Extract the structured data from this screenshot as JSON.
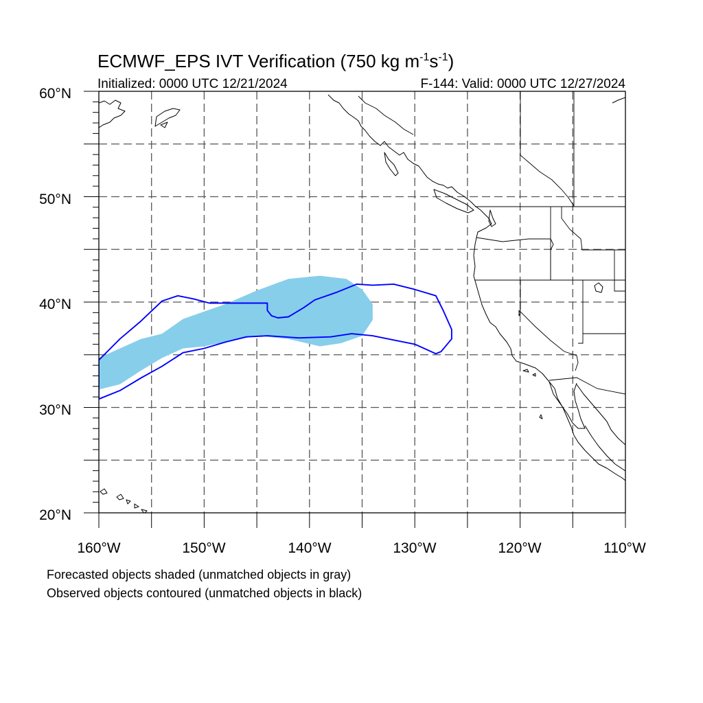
{
  "title": {
    "main": "ECMWF_EPS IVT Verification (750 kg m",
    "sup1": "-1",
    "mid": "s",
    "sup2": "-1",
    "end": ")"
  },
  "initialized": "Initialized: 0000 UTC 12/21/2024",
  "valid": "F-144: Valid: 0000 UTC 12/27/2024",
  "map": {
    "lon_range": [
      -160,
      -110
    ],
    "lat_range": [
      20,
      60
    ],
    "gridline_spacing_degrees": 5,
    "lat_labels": [
      "20°N",
      "30°N",
      "40°N",
      "50°N",
      "60°N"
    ],
    "lon_labels": [
      "160°W",
      "150°W",
      "140°W",
      "130°W",
      "120°W",
      "110°W"
    ],
    "forecast_color": "#87ceeb",
    "observed_color": "#0000ff",
    "forecast_object": [
      [
        -160,
        31.7
      ],
      [
        -158,
        32.2
      ],
      [
        -156,
        33.5
      ],
      [
        -154,
        34.7
      ],
      [
        -152,
        35.6
      ],
      [
        -150,
        35.8
      ],
      [
        -148,
        36.2
      ],
      [
        -145,
        36.8
      ],
      [
        -142,
        36.5
      ],
      [
        -139,
        35.8
      ],
      [
        -137,
        36.1
      ],
      [
        -135,
        36.8
      ],
      [
        -134,
        38.3
      ],
      [
        -134,
        39.8
      ],
      [
        -135,
        41.2
      ],
      [
        -136.5,
        42.2
      ],
      [
        -139,
        42.5
      ],
      [
        -142,
        42.2
      ],
      [
        -145,
        41.1
      ],
      [
        -148,
        39.8
      ],
      [
        -150,
        39.1
      ],
      [
        -152,
        38.4
      ],
      [
        -154,
        37.0
      ],
      [
        -156,
        36.5
      ],
      [
        -158,
        35.6
      ],
      [
        -160,
        34.7
      ]
    ],
    "observed_object": [
      [
        -160,
        30.8
      ],
      [
        -158,
        31.6
      ],
      [
        -156,
        32.8
      ],
      [
        -154,
        33.9
      ],
      [
        -152,
        35.2
      ],
      [
        -150,
        35.6
      ],
      [
        -148,
        36.2
      ],
      [
        -146,
        36.7
      ],
      [
        -144,
        36.8
      ],
      [
        -141,
        36.6
      ],
      [
        -138,
        36.7
      ],
      [
        -136,
        37.0
      ],
      [
        -134,
        36.8
      ],
      [
        -132,
        36.4
      ],
      [
        -130,
        36.0
      ],
      [
        -128,
        35.1
      ],
      [
        -127.5,
        35.3
      ],
      [
        -126.5,
        36.5
      ],
      [
        -126.5,
        37.4
      ],
      [
        -127.3,
        39.2
      ],
      [
        -128,
        40.6
      ],
      [
        -130,
        41.2
      ],
      [
        -132,
        41.7
      ],
      [
        -134,
        41.6
      ],
      [
        -135.5,
        41.7
      ],
      [
        -137.5,
        40.9
      ],
      [
        -139.5,
        40.2
      ],
      [
        -140.5,
        39.5
      ],
      [
        -141.5,
        38.9
      ],
      [
        -142,
        38.6
      ],
      [
        -143,
        38.5
      ],
      [
        -143.6,
        38.7
      ],
      [
        -144,
        39.2
      ],
      [
        -144,
        39.9
      ],
      [
        -145,
        39.9
      ],
      [
        -148,
        39.9
      ],
      [
        -149.5,
        39.9
      ],
      [
        -151,
        40.3
      ],
      [
        -152.5,
        40.6
      ],
      [
        -154,
        40.1
      ],
      [
        -156,
        38.2
      ],
      [
        -158,
        36.5
      ],
      [
        -160,
        34.5
      ]
    ]
  },
  "footer": {
    "line1": "Forecasted objects shaded (unmatched objects in gray)",
    "line2": "Observed objects contoured (unmatched objects in black)"
  }
}
